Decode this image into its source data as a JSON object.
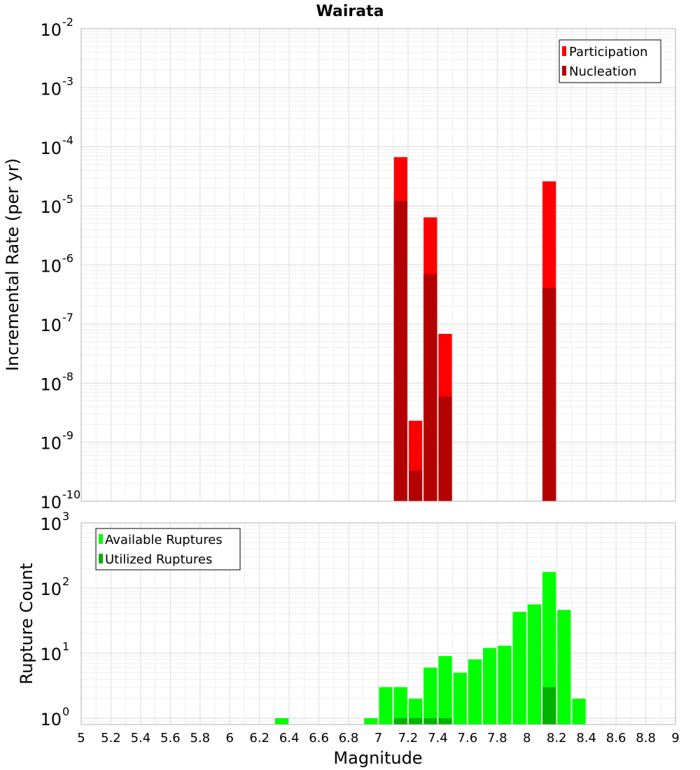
{
  "chart_data": [
    {
      "type": "bar",
      "title": "Wairata",
      "xlabel": "",
      "ylabel": "Incremental Rate (per yr)",
      "yscale": "log",
      "ylim": [
        1e-10,
        0.01
      ],
      "xlim": [
        5,
        9
      ],
      "grid": true,
      "legend_position": "top-right",
      "ytick_labels": [
        {
          "base": "10",
          "exp": "-10"
        },
        {
          "base": "10",
          "exp": "-9"
        },
        {
          "base": "10",
          "exp": "-8"
        },
        {
          "base": "10",
          "exp": "-7"
        },
        {
          "base": "10",
          "exp": "-6"
        },
        {
          "base": "10",
          "exp": "-5"
        },
        {
          "base": "10",
          "exp": "-4"
        },
        {
          "base": "10",
          "exp": "-3"
        },
        {
          "base": "10",
          "exp": "-2"
        }
      ],
      "series": [
        {
          "name": "Participation",
          "color": "#ff0000",
          "points": [
            {
              "x": 7.15,
              "y": 6.7e-05
            },
            {
              "x": 7.25,
              "y": 2.3e-09
            },
            {
              "x": 7.35,
              "y": 6.4e-06
            },
            {
              "x": 7.45,
              "y": 6.8e-08
            },
            {
              "x": 8.15,
              "y": 2.6e-05
            }
          ]
        },
        {
          "name": "Nucleation",
          "color": "#b30000",
          "points": [
            {
              "x": 7.15,
              "y": 1.2e-05
            },
            {
              "x": 7.25,
              "y": 3.3e-10
            },
            {
              "x": 7.35,
              "y": 7e-07
            },
            {
              "x": 7.45,
              "y": 5.9e-09
            },
            {
              "x": 8.15,
              "y": 4.1e-07
            }
          ]
        }
      ]
    },
    {
      "type": "bar",
      "title": "",
      "xlabel": "Magnitude",
      "ylabel": "Rupture Count",
      "yscale": "log",
      "ylim": [
        0.8,
        1000
      ],
      "xlim": [
        5,
        9
      ],
      "grid": true,
      "legend_position": "top-left",
      "xticks": [
        "5",
        "5.2",
        "5.4",
        "5.6",
        "5.8",
        "6",
        "6.2",
        "6.4",
        "6.6",
        "6.8",
        "7",
        "7.2",
        "7.4",
        "7.6",
        "7.8",
        "8",
        "8.2",
        "8.4",
        "8.6",
        "8.8",
        "9"
      ],
      "ytick_labels": [
        {
          "base": "10",
          "exp": "0"
        },
        {
          "base": "10",
          "exp": "1"
        },
        {
          "base": "10",
          "exp": "2"
        },
        {
          "base": "10",
          "exp": "3"
        }
      ],
      "series": [
        {
          "name": "Available Ruptures",
          "color": "#00ff00",
          "points": [
            {
              "x": 6.35,
              "y": 1
            },
            {
              "x": 6.95,
              "y": 1
            },
            {
              "x": 7.05,
              "y": 3
            },
            {
              "x": 7.15,
              "y": 3
            },
            {
              "x": 7.25,
              "y": 2
            },
            {
              "x": 7.35,
              "y": 6
            },
            {
              "x": 7.45,
              "y": 9
            },
            {
              "x": 7.55,
              "y": 5
            },
            {
              "x": 7.65,
              "y": 8
            },
            {
              "x": 7.75,
              "y": 12
            },
            {
              "x": 7.85,
              "y": 13
            },
            {
              "x": 7.95,
              "y": 43
            },
            {
              "x": 8.05,
              "y": 56
            },
            {
              "x": 8.15,
              "y": 176
            },
            {
              "x": 8.25,
              "y": 46
            },
            {
              "x": 8.35,
              "y": 2
            }
          ]
        },
        {
          "name": "Utilized Ruptures",
          "color": "#00b300",
          "points": [
            {
              "x": 7.15,
              "y": 1
            },
            {
              "x": 7.25,
              "y": 1
            },
            {
              "x": 7.35,
              "y": 1
            },
            {
              "x": 7.45,
              "y": 1
            },
            {
              "x": 8.15,
              "y": 3
            }
          ]
        }
      ]
    }
  ]
}
